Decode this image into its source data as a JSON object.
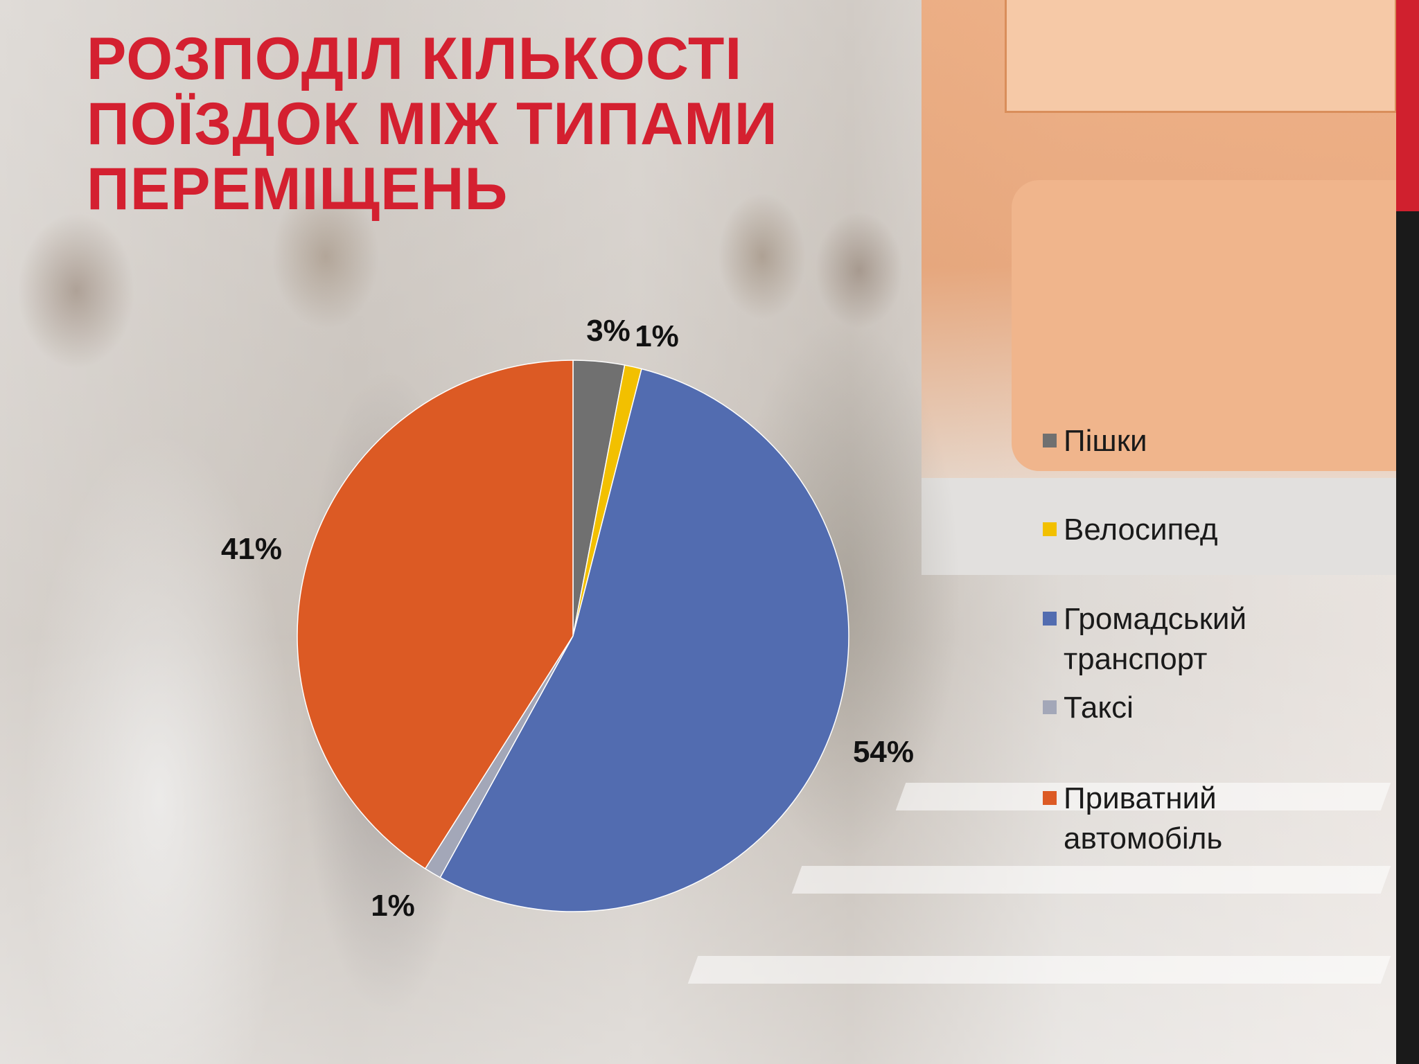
{
  "slide": {
    "title_lines": [
      "Розподіл кількості",
      "поїздок між типами",
      "переміщень"
    ]
  },
  "chart_data": {
    "type": "pie",
    "title": "Розподіл кількості поїздок між типами переміщень",
    "legend_position": "right",
    "slices": [
      {
        "name": "Пішки",
        "value": 3,
        "label": "3%",
        "color": "#707070"
      },
      {
        "name": "Велосипед",
        "value": 1,
        "label": "1%",
        "color": "#f2c000"
      },
      {
        "name": "Громадський транспорт",
        "value": 54,
        "label": "54%",
        "color": "#526cb0"
      },
      {
        "name": "Таксі",
        "value": 1,
        "label": "1%",
        "color": "#a3a7b8"
      },
      {
        "name": "Приватний автомобіль",
        "value": 41,
        "label": "41%",
        "color": "#dc5a24"
      }
    ],
    "legend": [
      {
        "lines": [
          "Пішки"
        ],
        "color": "#707070"
      },
      {
        "lines": [
          "Велосипед"
        ],
        "color": "#f2c000"
      },
      {
        "lines": [
          "Громадський",
          "транспорт"
        ],
        "color": "#526cb0"
      },
      {
        "lines": [
          "Таксі"
        ],
        "color": "#a3a7b8"
      },
      {
        "lines": [
          "Приватний",
          "автомобіль"
        ],
        "color": "#dc5a24"
      }
    ]
  }
}
